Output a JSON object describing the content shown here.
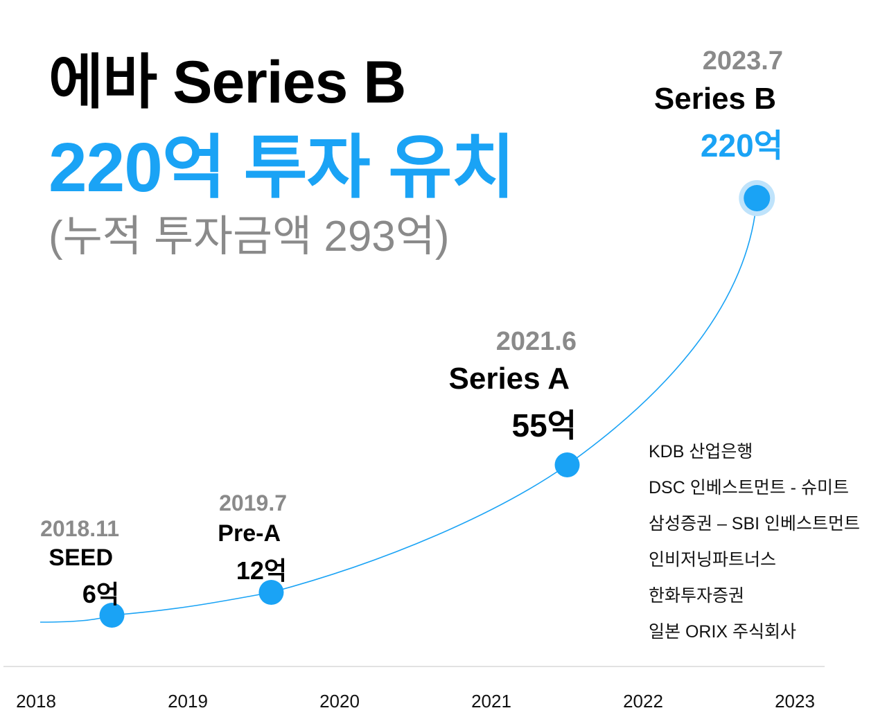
{
  "title": {
    "line1": "에바 Series B",
    "line2": "220억 투자 유치",
    "line3": "(누적 투자금액 293억)"
  },
  "colors": {
    "accent": "#1aa3f5",
    "text": "#000000",
    "muted": "#8a8a8a",
    "axis": "#d9d9d9"
  },
  "chart_data": {
    "type": "line",
    "x_axis": {
      "ticks": [
        "2018",
        "2019",
        "2020",
        "2021",
        "2022",
        "2023"
      ]
    },
    "points": [
      {
        "date": "2018.11",
        "round": "SEED",
        "amount_label": "6억",
        "amount": 6,
        "x": 2018.5
      },
      {
        "date": "2019.7",
        "round": "Pre-A",
        "amount_label": "12억",
        "amount": 12,
        "x": 2019.55
      },
      {
        "date": "2021.6",
        "round": "Series A",
        "amount_label": "55억",
        "amount": 55,
        "x": 2021.5
      },
      {
        "date": "2023.7",
        "round": "Series B",
        "amount_label": "220억",
        "amount": 220,
        "x": 2022.75
      }
    ],
    "investors": [
      "KDB 산업은행",
      "DSC 인베스트먼트 - 슈미트",
      "삼성증권 – SBI 인베스트먼트",
      "인비저닝파트너스",
      "한화투자증권",
      "일본 ORIX 주식회사"
    ]
  }
}
